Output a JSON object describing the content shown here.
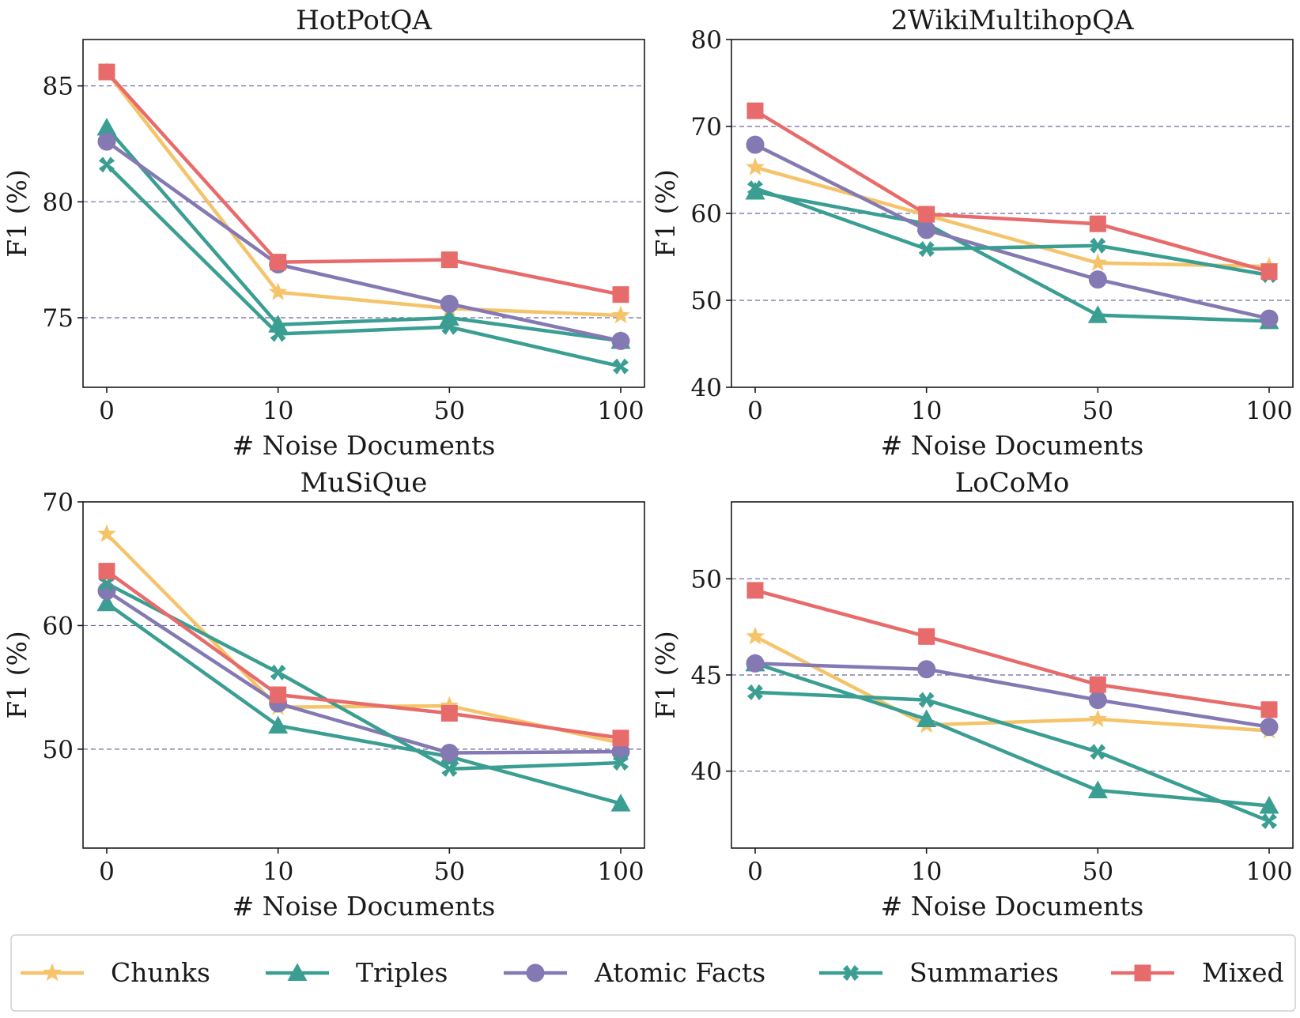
{
  "colors": {
    "Chunks": "#f5c46a",
    "Triples": "#3a9e92",
    "Atomic Facts": "#8479b2",
    "Summaries": "#3a9e92",
    "Mixed": "#e86b6b"
  },
  "markers": {
    "Chunks": "star",
    "Triples": "triangle",
    "Atomic Facts": "circle",
    "Summaries": "x",
    "Mixed": "square"
  },
  "legend": [
    "Chunks",
    "Triples",
    "Atomic Facts",
    "Summaries",
    "Mixed"
  ],
  "chart_data": [
    {
      "type": "line",
      "title": "HotPotQA",
      "xlabel": "# Noise Documents",
      "ylabel": "F1 (%)",
      "categories": [
        "0",
        "10",
        "50",
        "100"
      ],
      "ylim": [
        72.0,
        87.0
      ],
      "yticks": [
        75,
        80,
        85
      ],
      "grid": true,
      "series": [
        {
          "name": "Chunks",
          "values": [
            85.6,
            76.1,
            75.4,
            75.1
          ]
        },
        {
          "name": "Triples",
          "values": [
            83.2,
            74.7,
            75.0,
            74.0
          ]
        },
        {
          "name": "Atomic Facts",
          "values": [
            82.6,
            77.3,
            75.6,
            74.0
          ]
        },
        {
          "name": "Summaries",
          "values": [
            81.6,
            74.3,
            74.6,
            72.9
          ]
        },
        {
          "name": "Mixed",
          "values": [
            85.6,
            77.4,
            77.5,
            76.0
          ]
        }
      ]
    },
    {
      "type": "line",
      "title": "2WikiMultihopQA",
      "xlabel": "# Noise Documents",
      "ylabel": "F1 (%)",
      "categories": [
        "0",
        "10",
        "50",
        "100"
      ],
      "ylim": [
        40,
        80
      ],
      "yticks": [
        40,
        50,
        60,
        70,
        80
      ],
      "grid": true,
      "series": [
        {
          "name": "Chunks",
          "values": [
            65.3,
            59.8,
            54.3,
            53.9
          ]
        },
        {
          "name": "Triples",
          "values": [
            62.5,
            58.8,
            48.3,
            47.6
          ]
        },
        {
          "name": "Atomic Facts",
          "values": [
            67.9,
            58.1,
            52.4,
            47.9
          ]
        },
        {
          "name": "Summaries",
          "values": [
            62.9,
            55.9,
            56.3,
            52.9
          ]
        },
        {
          "name": "Mixed",
          "values": [
            71.8,
            59.9,
            58.8,
            53.3
          ]
        }
      ]
    },
    {
      "type": "line",
      "title": "MuSiQue",
      "xlabel": "# Noise Documents",
      "ylabel": "F1 (%)",
      "categories": [
        "0",
        "10",
        "50",
        "100"
      ],
      "ylim": [
        42.0,
        70.0
      ],
      "yticks": [
        50,
        60,
        70
      ],
      "grid": true,
      "series": [
        {
          "name": "Chunks",
          "values": [
            67.4,
            53.4,
            53.5,
            50.5
          ]
        },
        {
          "name": "Triples",
          "values": [
            61.8,
            51.9,
            49.4,
            45.6
          ]
        },
        {
          "name": "Atomic Facts",
          "values": [
            62.8,
            53.7,
            49.7,
            49.8
          ]
        },
        {
          "name": "Summaries",
          "values": [
            63.4,
            56.2,
            48.4,
            48.9
          ]
        },
        {
          "name": "Mixed",
          "values": [
            64.4,
            54.4,
            52.9,
            50.9
          ]
        }
      ]
    },
    {
      "type": "line",
      "title": "LoCoMo",
      "xlabel": "# Noise Documents",
      "ylabel": "F1 (%)",
      "categories": [
        "0",
        "10",
        "50",
        "100"
      ],
      "ylim": [
        36.0,
        54.0
      ],
      "yticks": [
        40,
        45,
        50
      ],
      "grid": true,
      "series": [
        {
          "name": "Chunks",
          "values": [
            47.0,
            42.4,
            42.7,
            42.1
          ]
        },
        {
          "name": "Triples",
          "values": [
            45.6,
            42.7,
            39.0,
            38.2
          ]
        },
        {
          "name": "Atomic Facts",
          "values": [
            45.6,
            45.3,
            43.7,
            42.3
          ]
        },
        {
          "name": "Summaries",
          "values": [
            44.1,
            43.7,
            41.0,
            37.4
          ]
        },
        {
          "name": "Mixed",
          "values": [
            49.4,
            47.0,
            44.5,
            43.2
          ]
        }
      ]
    }
  ]
}
